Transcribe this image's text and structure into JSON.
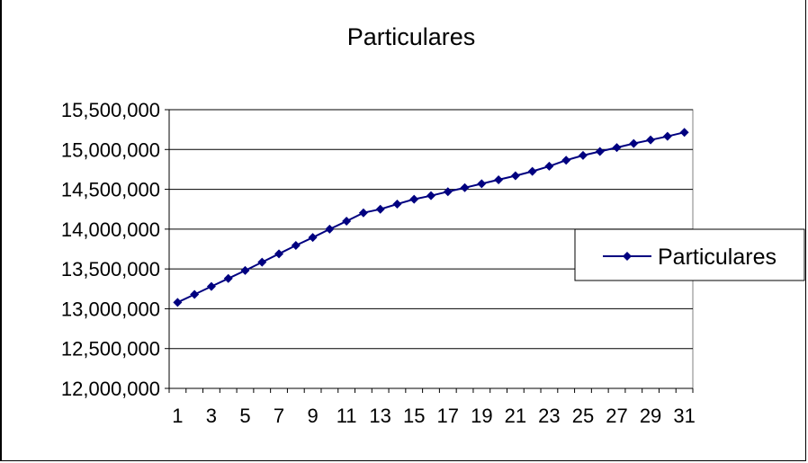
{
  "chart_data": {
    "type": "line",
    "title": "Particulares",
    "x": [
      1,
      2,
      3,
      4,
      5,
      6,
      7,
      8,
      9,
      10,
      11,
      12,
      13,
      14,
      15,
      16,
      17,
      18,
      19,
      20,
      21,
      22,
      23,
      24,
      25,
      26,
      27,
      28,
      29,
      30,
      31
    ],
    "x_tick_labels": [
      "1",
      "3",
      "5",
      "7",
      "9",
      "11",
      "13",
      "15",
      "17",
      "19",
      "21",
      "23",
      "25",
      "27",
      "29",
      "31"
    ],
    "series": [
      {
        "name": "Particulares",
        "color": "#000080",
        "marker": "diamond",
        "values": [
          13080000,
          13180000,
          13280000,
          13380000,
          13480000,
          13585000,
          13690000,
          13795000,
          13895000,
          14000000,
          14100000,
          14205000,
          14250000,
          14315000,
          14375000,
          14420000,
          14470000,
          14520000,
          14570000,
          14620000,
          14670000,
          14725000,
          14790000,
          14865000,
          14925000,
          14975000,
          15025000,
          15075000,
          15120000,
          15165000,
          15215000
        ]
      }
    ],
    "y_tick_labels": [
      "12,000,000",
      "12,500,000",
      "13,000,000",
      "13,500,000",
      "14,000,000",
      "14,500,000",
      "15,000,000",
      "15,500,000"
    ],
    "ylim": [
      12000000,
      15500000
    ],
    "y_grid": true,
    "x_grid": false,
    "legend_position": "right"
  }
}
